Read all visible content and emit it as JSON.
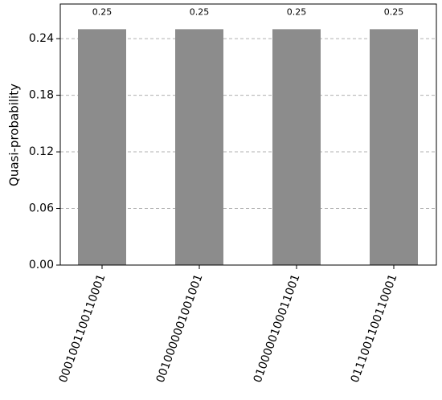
{
  "chart_data": {
    "type": "bar",
    "ylabel": "Quasi-probability",
    "categories": [
      "0001001100110001",
      "0010000001001001",
      "0100000100011001",
      "0111001100110001"
    ],
    "values": [
      0.25,
      0.25,
      0.25,
      0.25
    ],
    "color": "#8c8c8c",
    "ylim": [
      0,
      0.275
    ],
    "yticks": [
      {
        "value": 0,
        "label": "0.00"
      },
      0.06,
      0.12,
      0.18,
      0.24
    ],
    "grid": true
  }
}
